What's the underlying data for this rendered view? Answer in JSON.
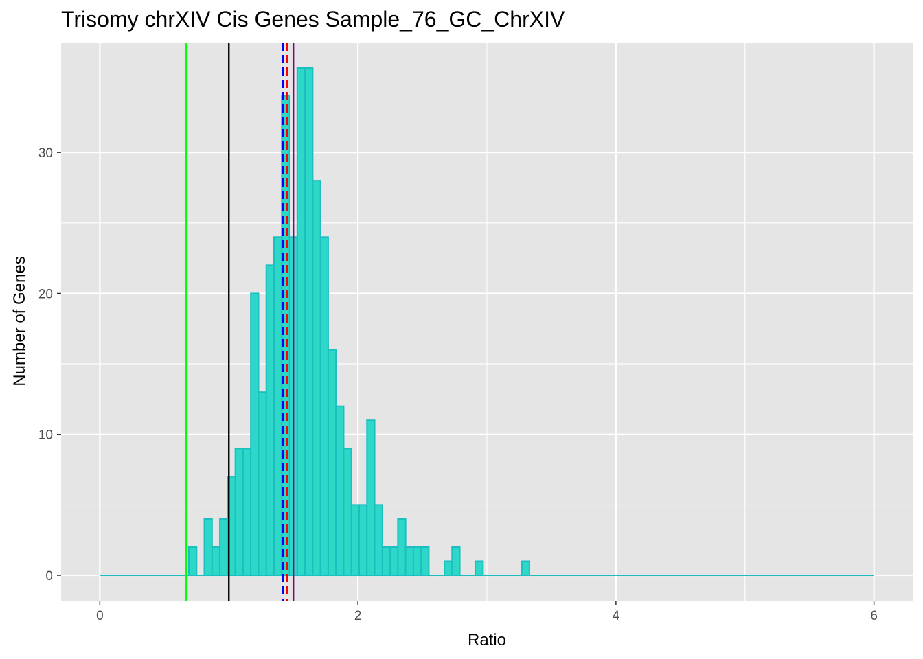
{
  "chart_data": {
    "type": "bar",
    "title": "Trisomy chrXIV Cis Genes Sample_76_GC_ChrXIV",
    "xlabel": "Ratio",
    "ylabel": "Number of Genes",
    "xlim": [
      -0.3,
      6.3
    ],
    "ylim": [
      -1.8,
      37.8
    ],
    "xticks": [
      0,
      2,
      4,
      6
    ],
    "yticks": [
      0,
      10,
      20,
      30
    ],
    "grid": true,
    "bin_width": 0.06,
    "bins": [
      {
        "x": 0.72,
        "count": 2
      },
      {
        "x": 0.84,
        "count": 4
      },
      {
        "x": 0.9,
        "count": 2
      },
      {
        "x": 0.96,
        "count": 4
      },
      {
        "x": 1.02,
        "count": 7
      },
      {
        "x": 1.08,
        "count": 9
      },
      {
        "x": 1.14,
        "count": 9
      },
      {
        "x": 1.2,
        "count": 20
      },
      {
        "x": 1.26,
        "count": 13
      },
      {
        "x": 1.32,
        "count": 22
      },
      {
        "x": 1.38,
        "count": 24
      },
      {
        "x": 1.44,
        "count": 34
      },
      {
        "x": 1.5,
        "count": 24
      },
      {
        "x": 1.56,
        "count": 36
      },
      {
        "x": 1.62,
        "count": 36
      },
      {
        "x": 1.68,
        "count": 28
      },
      {
        "x": 1.74,
        "count": 24
      },
      {
        "x": 1.8,
        "count": 16
      },
      {
        "x": 1.86,
        "count": 12
      },
      {
        "x": 1.92,
        "count": 9
      },
      {
        "x": 1.98,
        "count": 5
      },
      {
        "x": 2.04,
        "count": 5
      },
      {
        "x": 2.1,
        "count": 11
      },
      {
        "x": 2.16,
        "count": 5
      },
      {
        "x": 2.22,
        "count": 2
      },
      {
        "x": 2.28,
        "count": 2
      },
      {
        "x": 2.34,
        "count": 4
      },
      {
        "x": 2.4,
        "count": 2
      },
      {
        "x": 2.46,
        "count": 2
      },
      {
        "x": 2.52,
        "count": 2
      },
      {
        "x": 2.7,
        "count": 1
      },
      {
        "x": 2.76,
        "count": 2
      },
      {
        "x": 2.94,
        "count": 1
      },
      {
        "x": 3.3,
        "count": 1
      }
    ],
    "range": [
      0,
      6
    ],
    "fill_color": "#2ed8c8",
    "stroke_color": "#1bbfbf",
    "reference_lines": [
      {
        "x": 0.67,
        "color": "#00ff00",
        "style": "solid"
      },
      {
        "x": 1.0,
        "color": "#000000",
        "style": "solid"
      },
      {
        "x": 1.42,
        "color": "#0000ff",
        "style": "dashed"
      },
      {
        "x": 1.45,
        "color": "#ff0000",
        "style": "dashed"
      },
      {
        "x": 1.5,
        "color": "#800080",
        "style": "solid"
      }
    ],
    "colors": {
      "panel_bg": "#e5e5e5",
      "grid": "#ffffff",
      "tick_label": "#4d4d4d",
      "tick_mark": "#333333"
    }
  }
}
